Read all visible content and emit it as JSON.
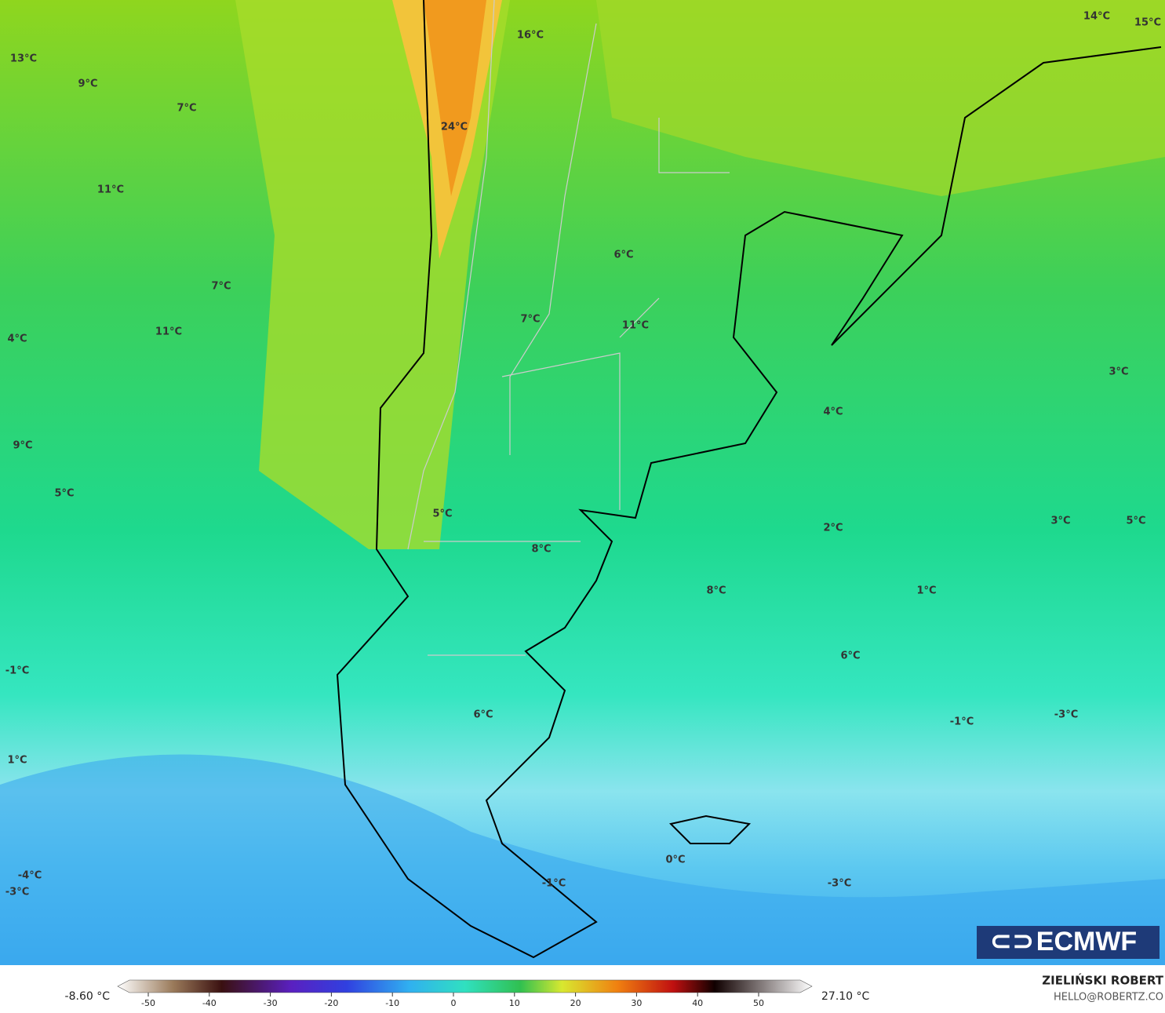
{
  "map": {
    "labels": [
      "13°C",
      "9°C",
      "7°C",
      "11°C",
      "7°C",
      "11°C",
      "4°C",
      "9°C",
      "5°C",
      "16°C",
      "24°C",
      "6°C",
      "7°C",
      "11°C",
      "14°C",
      "15°C",
      "3°C",
      "4°C",
      "5°C",
      "8°C",
      "2°C",
      "3°C",
      "5°C",
      "1°C",
      "8°C",
      "6°C",
      "-1°C",
      "6°C",
      "-1°C",
      "-3°C",
      "1°C",
      "0°C",
      "-1°C",
      "-3°C",
      "-4°C",
      "-3°C"
    ],
    "logo": "ECMWF"
  },
  "colorbar": {
    "min_label": "-8.60 °C",
    "max_label": "27.10 °C",
    "ticks": [
      -50,
      -40,
      -30,
      -20,
      -10,
      0,
      10,
      20,
      30,
      40,
      50
    ]
  },
  "credit": {
    "author": "ZIELIŃSKI ROBERT",
    "email": "HELLO@ROBERTZ.CO"
  }
}
